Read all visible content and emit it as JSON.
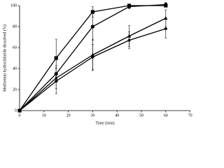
{
  "chart_data": {
    "type": "line",
    "x_label": "Time (min)",
    "y_label": "Metformin hydrochloride dissolved (%)",
    "x": [
      0,
      15,
      30,
      45,
      60
    ],
    "series": [
      {
        "color": "#000000",
        "marker": "square",
        "values": [
          0,
          50,
          94,
          100,
          100
        ],
        "errors": [
          0,
          18,
          5,
          1,
          1
        ]
      },
      {
        "color": "#000000",
        "marker": "circle",
        "values": [
          0,
          35,
          80,
          99,
          101
        ],
        "errors": [
          0,
          8,
          13,
          2,
          2
        ]
      },
      {
        "color": "#000000",
        "marker": "triangle",
        "values": [
          0,
          31,
          53,
          71,
          88
        ],
        "errors": [
          0,
          10,
          15,
          10,
          8
        ]
      },
      {
        "color": "#000000",
        "marker": "diamond",
        "values": [
          0,
          28,
          51,
          67,
          78
        ],
        "errors": [
          0,
          12,
          12,
          8,
          9
        ]
      }
    ],
    "xlim": [
      0,
      70
    ],
    "xticks": [
      0,
      10,
      20,
      30,
      40,
      50,
      60,
      70
    ],
    "ylim": [
      0,
      100
    ],
    "yticks": [
      0,
      20,
      40,
      60,
      80,
      100
    ]
  }
}
